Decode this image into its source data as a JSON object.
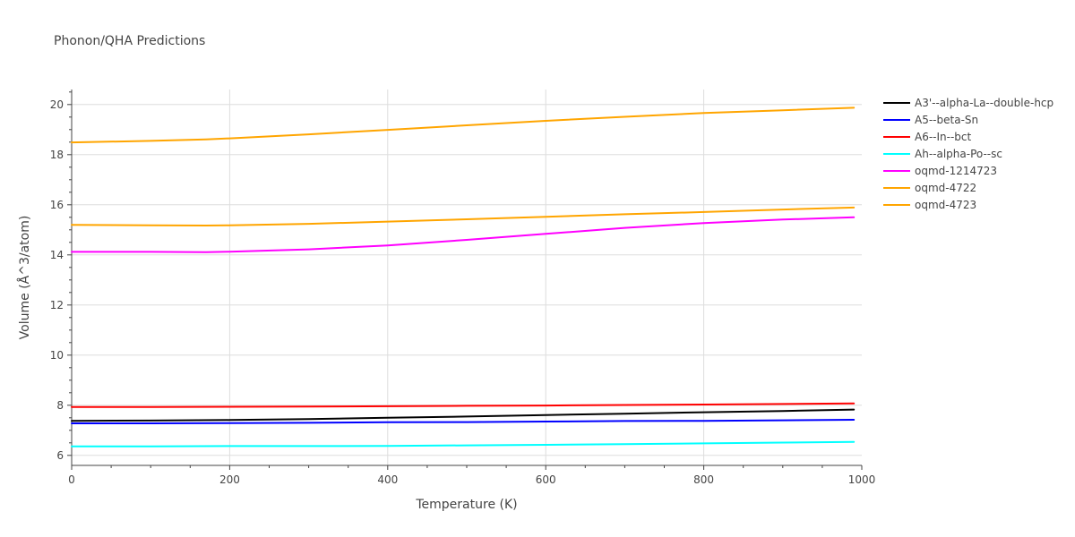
{
  "chart_data": {
    "type": "line",
    "title": "Phonon/QHA Predictions",
    "xlabel": "Temperature (K)",
    "ylabel": "Volume (Å^3/atom)",
    "xlim": [
      0,
      1000
    ],
    "ylim": [
      5.6,
      20.6
    ],
    "xticks": [
      0,
      200,
      400,
      600,
      800,
      1000
    ],
    "yticks": [
      6,
      8,
      10,
      12,
      14,
      16,
      18,
      20
    ],
    "grid": true,
    "legend_position": "top-right-outside",
    "series": [
      {
        "name": "A3'--alpha-La--double-hcp",
        "color": "#000000",
        "x": [
          0,
          100,
          200,
          300,
          400,
          500,
          600,
          700,
          800,
          900,
          990
        ],
        "y": [
          7.38,
          7.39,
          7.41,
          7.45,
          7.5,
          7.55,
          7.61,
          7.66,
          7.72,
          7.77,
          7.83
        ]
      },
      {
        "name": "A5--beta-Sn",
        "color": "#0000ff",
        "x": [
          0,
          100,
          200,
          300,
          400,
          500,
          600,
          700,
          800,
          900,
          990
        ],
        "y": [
          7.28,
          7.28,
          7.29,
          7.3,
          7.32,
          7.33,
          7.35,
          7.37,
          7.38,
          7.4,
          7.42
        ]
      },
      {
        "name": "A6--In--bct",
        "color": "#ff0000",
        "x": [
          0,
          100,
          200,
          300,
          400,
          500,
          600,
          700,
          800,
          900,
          990
        ],
        "y": [
          7.93,
          7.93,
          7.94,
          7.95,
          7.96,
          7.98,
          7.99,
          8.01,
          8.03,
          8.05,
          8.07
        ]
      },
      {
        "name": "Ah--alpha-Po--sc",
        "color": "#00ffff",
        "x": [
          0,
          100,
          200,
          300,
          400,
          500,
          600,
          700,
          800,
          900,
          990
        ],
        "y": [
          6.36,
          6.36,
          6.37,
          6.37,
          6.38,
          6.4,
          6.42,
          6.45,
          6.48,
          6.51,
          6.54
        ]
      },
      {
        "name": "oqmd-1214723",
        "color": "#ff00ff",
        "x": [
          0,
          100,
          170,
          200,
          300,
          400,
          500,
          600,
          700,
          800,
          900,
          990
        ],
        "y": [
          14.12,
          14.12,
          14.11,
          14.13,
          14.22,
          14.38,
          14.6,
          14.84,
          15.08,
          15.27,
          15.41,
          15.5
        ]
      },
      {
        "name": "oqmd-4722",
        "color": "#ffa500",
        "x": [
          0,
          100,
          170,
          200,
          300,
          400,
          500,
          600,
          700,
          800,
          900,
          990
        ],
        "y": [
          15.2,
          15.18,
          15.17,
          15.18,
          15.24,
          15.33,
          15.42,
          15.52,
          15.62,
          15.71,
          15.81,
          15.89
        ]
      },
      {
        "name": "oqmd-4723",
        "color": "#ffa500",
        "x": [
          0,
          100,
          170,
          200,
          300,
          400,
          500,
          600,
          700,
          800,
          900,
          990
        ],
        "y": [
          18.49,
          18.55,
          18.61,
          18.65,
          18.81,
          18.99,
          19.17,
          19.35,
          19.51,
          19.66,
          19.77,
          19.87
        ]
      }
    ]
  }
}
